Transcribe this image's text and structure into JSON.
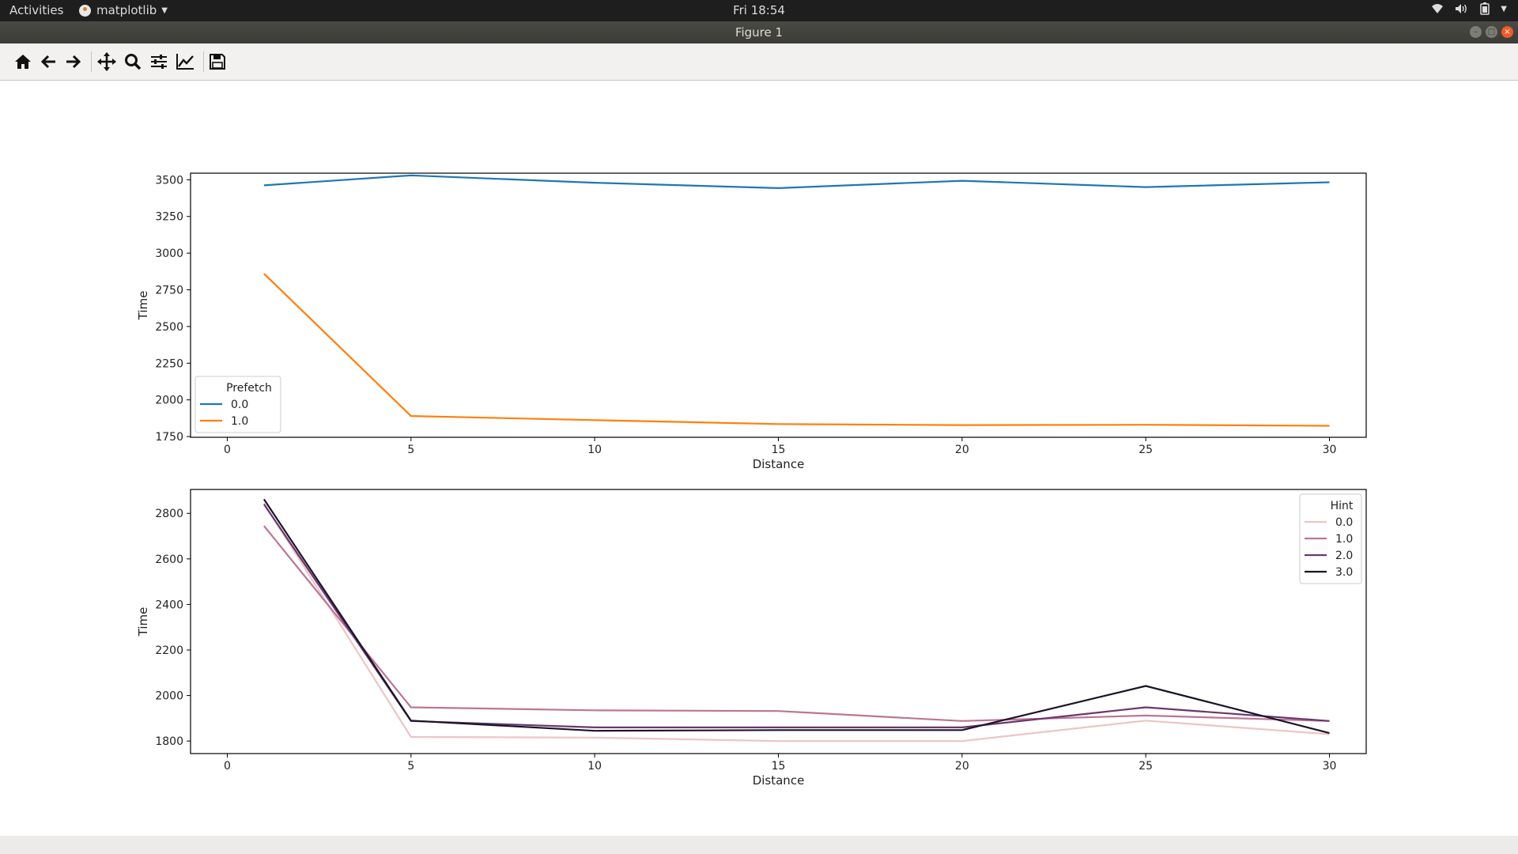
{
  "topbar": {
    "activities": "Activities",
    "app_name": "matplotlib",
    "clock": "Fri 18:54"
  },
  "window": {
    "title": "Figure 1"
  },
  "toolbar": {
    "buttons": [
      {
        "name": "home-button",
        "icon": "home-icon"
      },
      {
        "name": "back-button",
        "icon": "arrow-left-icon"
      },
      {
        "name": "forward-button",
        "icon": "arrow-right-icon"
      },
      {
        "name": "pan-button",
        "icon": "move-icon"
      },
      {
        "name": "zoom-button",
        "icon": "magnifier-icon"
      },
      {
        "name": "subplots-button",
        "icon": "sliders-icon"
      },
      {
        "name": "edit-axes-button",
        "icon": "line-chart-icon"
      },
      {
        "name": "save-button",
        "icon": "floppy-icon"
      }
    ]
  },
  "chart_data": [
    {
      "type": "line",
      "xlabel": "Distance",
      "ylabel": "Time",
      "xlim": [
        -1,
        31
      ],
      "ylim": [
        1745,
        3545
      ],
      "xticks": [
        0,
        5,
        10,
        15,
        20,
        25,
        30
      ],
      "yticks": [
        1750,
        2000,
        2250,
        2500,
        2750,
        3000,
        3250,
        3500
      ],
      "x": [
        1,
        5,
        10,
        15,
        20,
        25,
        30
      ],
      "legend": {
        "title": "Prefetch",
        "position": "lower-left"
      },
      "series": [
        {
          "name": "0.0",
          "color": "#1f77b4",
          "values": [
            3462,
            3530,
            3480,
            3443,
            3493,
            3450,
            3483
          ]
        },
        {
          "name": "1.0",
          "color": "#ff7f0e",
          "values": [
            2860,
            1890,
            1862,
            1835,
            1828,
            1830,
            1823
          ]
        }
      ]
    },
    {
      "type": "line",
      "xlabel": "Distance",
      "ylabel": "Time",
      "xlim": [
        -1,
        31
      ],
      "ylim": [
        1745,
        2905
      ],
      "xticks": [
        0,
        5,
        10,
        15,
        20,
        25,
        30
      ],
      "yticks": [
        1800,
        2000,
        2200,
        2400,
        2600,
        2800
      ],
      "x": [
        1,
        5,
        10,
        15,
        20,
        25,
        30
      ],
      "legend": {
        "title": "Hint",
        "position": "upper-right"
      },
      "series": [
        {
          "name": "0.0",
          "color": "#edc4c6",
          "values": [
            2845,
            1818,
            1815,
            1800,
            1800,
            1890,
            1830
          ]
        },
        {
          "name": "1.0",
          "color": "#bd7593",
          "values": [
            2745,
            1948,
            1935,
            1932,
            1888,
            1912,
            1888
          ]
        },
        {
          "name": "2.0",
          "color": "#6a3770",
          "values": [
            2840,
            1888,
            1860,
            1860,
            1860,
            1948,
            1888
          ]
        },
        {
          "name": "3.0",
          "color": "#1c1428",
          "values": [
            2862,
            1890,
            1845,
            1848,
            1848,
            2042,
            1835
          ]
        }
      ]
    }
  ]
}
